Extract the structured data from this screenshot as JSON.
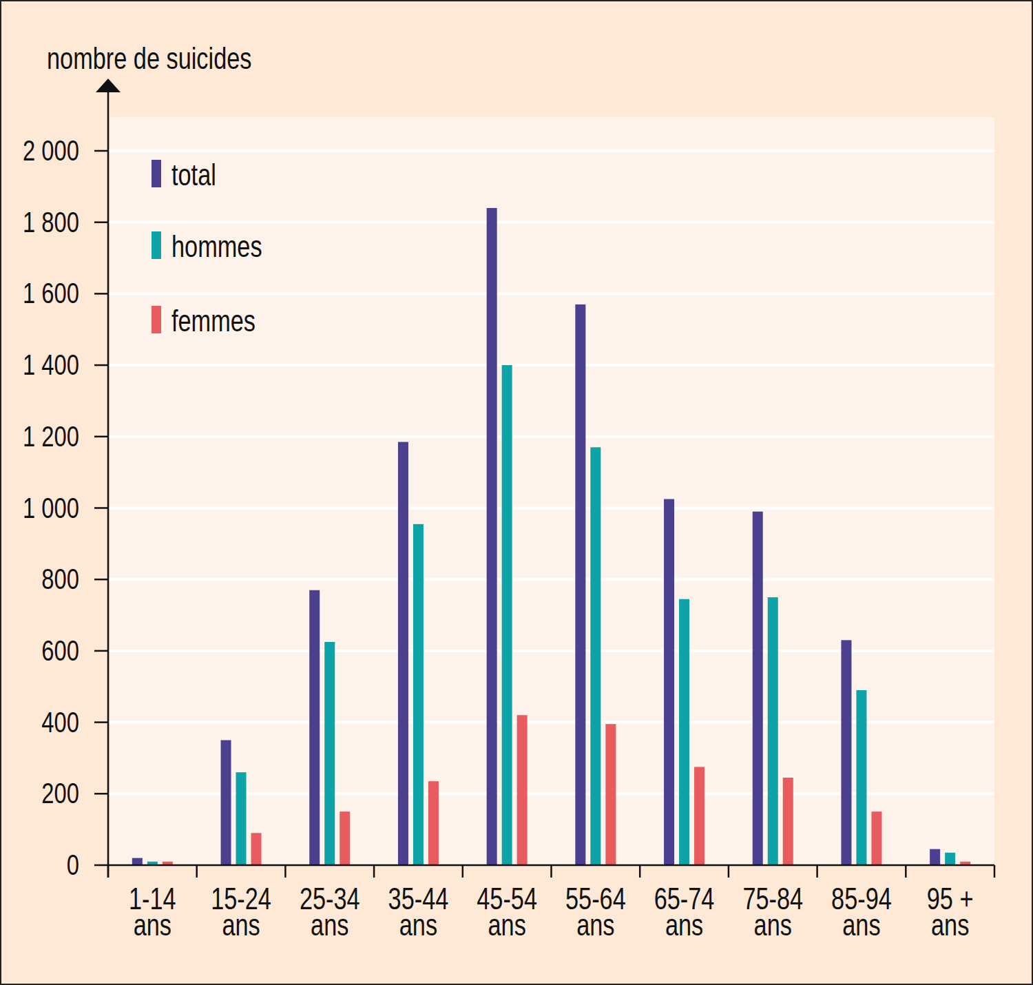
{
  "chart_data": {
    "type": "bar",
    "y_label": "nombre de suicides",
    "categories": [
      "1-14 ans",
      "15-24 ans",
      "25-34 ans",
      "35-44 ans",
      "45-54 ans",
      "55-64 ans",
      "65-74 ans",
      "75-84 ans",
      "85-94 ans",
      "95 + ans"
    ],
    "series": [
      {
        "name": "total",
        "color": "#4b3f8f",
        "values": [
          20,
          350,
          770,
          1185,
          1840,
          1570,
          1025,
          990,
          630,
          45
        ]
      },
      {
        "name": "hommes",
        "color": "#0ea3a6",
        "values": [
          10,
          260,
          625,
          955,
          1400,
          1170,
          745,
          750,
          490,
          35
        ]
      },
      {
        "name": "femmes",
        "color": "#e85c5f",
        "values": [
          10,
          90,
          150,
          235,
          420,
          395,
          275,
          245,
          150,
          10
        ]
      }
    ],
    "ylim": [
      0,
      2000
    ],
    "yticks": [
      0,
      200,
      400,
      600,
      800,
      {
        "value": 1000,
        "label": "1 000"
      },
      {
        "value": 1200,
        "label": "1 200"
      },
      {
        "value": 1400,
        "label": "1 400"
      },
      {
        "value": 1600,
        "label": "1 600"
      },
      {
        "value": 1800,
        "label": "1 800"
      },
      {
        "value": 2000,
        "label": "2 000"
      }
    ],
    "grid": true,
    "legend": "top-left"
  }
}
